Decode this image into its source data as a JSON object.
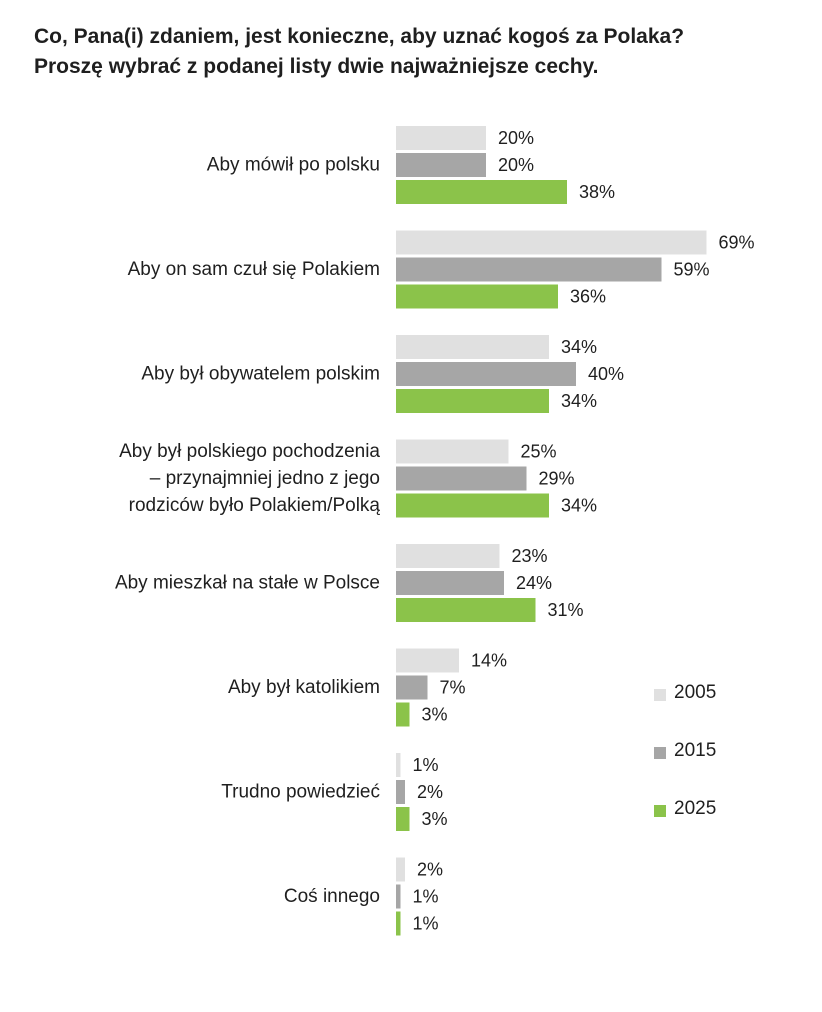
{
  "title_lines": [
    "Co, Pana(i) zdaniem, jest konieczne, aby uznać kogoś za Polaka?",
    "Proszę wybrać z podanej listy dwie najważniejsze cechy."
  ],
  "colors": {
    "y2005": "#e0e0e0",
    "y2015": "#a6a6a6",
    "y2025": "#8bc34a"
  },
  "chart_data": {
    "type": "bar",
    "orientation": "horizontal",
    "title": "Co, Pana(i) zdaniem, jest konieczne, aby uznać kogoś za Polaka? Proszę wybrać z podanej listy dwie najważniejsze cechy.",
    "unit": "%",
    "categories": [
      [
        "Aby mówił po polsku"
      ],
      [
        "Aby on sam czuł się Polakiem"
      ],
      [
        "Aby był obywatelem polskim"
      ],
      [
        "Aby był polskiego pochodzenia",
        "– przynajmniej jedno z jego",
        "rodziców było Polakiem/Polką"
      ],
      [
        "Aby mieszkał na stałe w Polsce"
      ],
      [
        "Aby był katolikiem"
      ],
      [
        "Trudno powiedzieć"
      ],
      [
        "Coś innego"
      ]
    ],
    "series": [
      {
        "name": "2005",
        "values": [
          20,
          69,
          34,
          25,
          23,
          14,
          1,
          2
        ]
      },
      {
        "name": "2015",
        "values": [
          20,
          59,
          40,
          29,
          24,
          7,
          2,
          1
        ]
      },
      {
        "name": "2025",
        "values": [
          38,
          36,
          34,
          34,
          31,
          3,
          3,
          1
        ]
      }
    ],
    "legend_position": "right"
  }
}
